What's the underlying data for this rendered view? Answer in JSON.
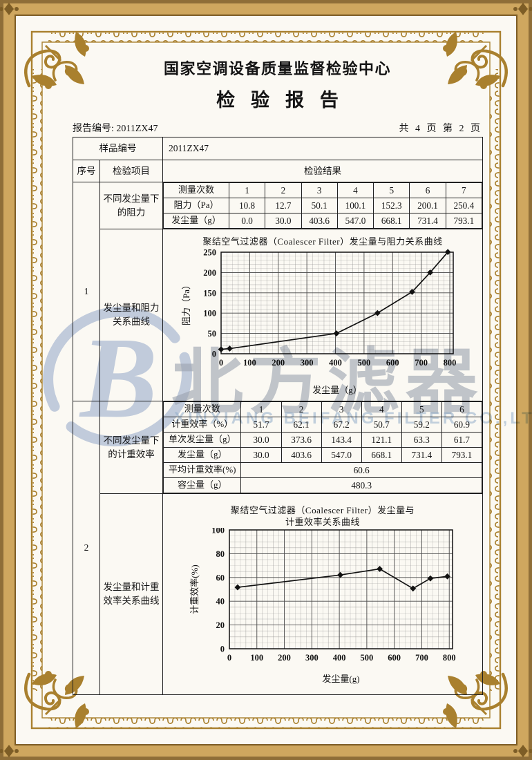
{
  "header": {
    "org_title": "国家空调设备质量监督检验中心",
    "report_title": "检验报告",
    "report_no_label": "报告编号:",
    "report_no_value": "2011ZX47",
    "page_info": "共 4 页 第 2 页"
  },
  "sample": {
    "label": "样品编号",
    "value": "2011ZX47"
  },
  "columns": {
    "seq": "序号",
    "item": "检验项目",
    "result": "检验结果"
  },
  "section1": {
    "seq": "1",
    "item": "不同发尘量下的阻力",
    "curve_item": "发尘量和阻力关系曲线",
    "measure_label": "测量次数",
    "counts": [
      "1",
      "2",
      "3",
      "4",
      "5",
      "6",
      "7"
    ],
    "resistance": {
      "label": "阻力（Pa）",
      "values": [
        "10.8",
        "12.7",
        "50.1",
        "100.1",
        "152.3",
        "200.1",
        "250.4"
      ]
    },
    "dust": {
      "label": "发尘量（g）",
      "values": [
        "0.0",
        "30.0",
        "403.6",
        "547.0",
        "668.1",
        "731.4",
        "793.1"
      ]
    }
  },
  "section2": {
    "seq": "2",
    "item": "不同发尘量下的计重效率",
    "curve_item": "发尘量和计重效率关系曲线",
    "measure_label": "测量次数",
    "counts": [
      "1",
      "2",
      "3",
      "4",
      "5",
      "6"
    ],
    "efficiency": {
      "label": "计重效率（%）",
      "values": [
        "51.7",
        "62.1",
        "67.2",
        "50.7",
        "59.2",
        "60.9"
      ]
    },
    "single_dust": {
      "label": "单次发尘量（g）",
      "values": [
        "30.0",
        "373.6",
        "143.4",
        "121.1",
        "63.3",
        "61.7"
      ]
    },
    "dust": {
      "label": "发尘量（g）",
      "values": [
        "30.0",
        "403.6",
        "547.0",
        "668.1",
        "731.4",
        "793.1"
      ]
    },
    "avg_efficiency": {
      "label": "平均计重效率(%)",
      "value": "60.6"
    },
    "dust_capacity": {
      "label": "容尘量（g）",
      "value": "480.3"
    }
  },
  "chart_data": [
    {
      "type": "line",
      "title": "聚结空气过滤器（Coalescer Filter）发尘量与阻力关系曲线",
      "xlabel": "发尘量（g）",
      "ylabel": "阻力（Pa）",
      "x": [
        0,
        30,
        403.6,
        547.0,
        668.1,
        731.4,
        793.1
      ],
      "y": [
        10.8,
        12.7,
        50.1,
        100.1,
        152.3,
        200.1,
        250.4
      ],
      "xlim": [
        0,
        812
      ],
      "ylim": [
        0,
        250
      ],
      "xticks": [
        0,
        100,
        200,
        300,
        400,
        500,
        600,
        700,
        800
      ],
      "yticks": [
        0,
        50,
        100,
        150,
        200,
        250
      ],
      "minor_x": 20,
      "minor_y": 10,
      "grid": true,
      "legend": "none"
    },
    {
      "type": "line",
      "title": "聚结空气过滤器（Coalescer Filter）发尘量与计重效率关系曲线",
      "title_lines": [
        "聚结空气过滤器（Coalescer Filter）发尘量与",
        "计重效率关系曲线"
      ],
      "xlabel": "发尘量(g)",
      "ylabel": "计重效率(%)",
      "x": [
        30,
        403.6,
        547.0,
        668.1,
        731.4,
        793.1
      ],
      "y": [
        51.7,
        62.1,
        67.2,
        50.7,
        59.2,
        60.9
      ],
      "xlim": [
        0,
        812
      ],
      "ylim": [
        0,
        100
      ],
      "xticks": [
        0,
        100,
        200,
        300,
        400,
        500,
        600,
        700,
        800
      ],
      "yticks": [
        0,
        20,
        40,
        60,
        80,
        100
      ],
      "minor_x": 20,
      "minor_y": 5,
      "grid": true,
      "legend": "none"
    }
  ],
  "watermark": {
    "logo_letter": "B",
    "cn": "北方滤器",
    "en": "XINXIANG BEIFANG FILTER CO.,LTD"
  },
  "colors": {
    "frame_gold": "#a9802e",
    "band_tan": "#cfa75f",
    "band_edge": "#8f6e38",
    "watermark_blue": "#c4d0e6",
    "ink": "#1d1d1d",
    "paper": "#fbf9f3"
  }
}
